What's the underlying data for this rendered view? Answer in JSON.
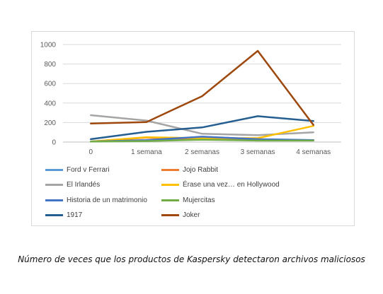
{
  "caption": "Número de veces que los productos de Kaspersky detectaron archivos maliciosos",
  "chart_data": {
    "type": "line",
    "title": "",
    "xlabel": "",
    "ylabel": "",
    "categories": [
      "0",
      "1 semana",
      "2 semanas",
      "3 semanas",
      "4 semanas"
    ],
    "ylim": [
      0,
      1000
    ],
    "yticks": [
      0,
      200,
      400,
      600,
      800,
      1000
    ],
    "grid": true,
    "legend_position": "bottom",
    "series": [
      {
        "name": "Ford v Ferrari",
        "color": "#5b9bd5",
        "values": [
          5,
          15,
          30,
          20,
          20
        ]
      },
      {
        "name": "Jojo Rabbit",
        "color": "#ed7d31",
        "values": [
          5,
          45,
          30,
          20,
          20
        ]
      },
      {
        "name": "El Irlandés",
        "color": "#a5a5a5",
        "values": [
          275,
          220,
          85,
          70,
          100
        ]
      },
      {
        "name": "Érase una vez… en Hollywood",
        "color": "#ffc000",
        "values": [
          5,
          50,
          40,
          40,
          165
        ]
      },
      {
        "name": "Historia de un matrimonio",
        "color": "#4472c4",
        "values": [
          5,
          20,
          55,
          30,
          20
        ]
      },
      {
        "name": "Mujercitas",
        "color": "#70ad47",
        "values": [
          5,
          10,
          25,
          15,
          15
        ]
      },
      {
        "name": "1917",
        "color": "#255e91",
        "values": [
          30,
          105,
          150,
          265,
          215
        ]
      },
      {
        "name": "Joker",
        "color": "#9e480e",
        "values": [
          190,
          205,
          470,
          935,
          175
        ]
      }
    ]
  }
}
